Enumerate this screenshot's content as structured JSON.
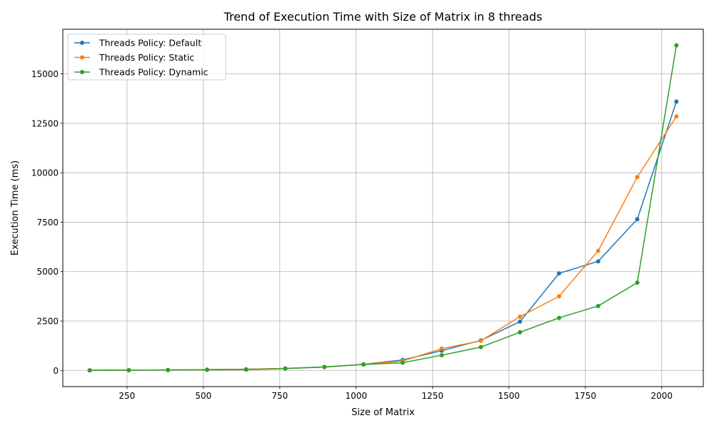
{
  "chart_data": {
    "type": "line",
    "title": "Trend of Execution Time with Size of Matrix in 8 threads",
    "xlabel": "Size of Matrix",
    "ylabel": "Execution Time (ms)",
    "x": [
      128,
      256,
      384,
      512,
      640,
      768,
      896,
      1024,
      1152,
      1280,
      1408,
      1536,
      1664,
      1792,
      1920,
      2048
    ],
    "xlim": [
      40,
      2136
    ],
    "ylim": [
      -820,
      17260
    ],
    "xticks": [
      250,
      500,
      750,
      1000,
      1250,
      1500,
      1750,
      2000
    ],
    "yticks": [
      0,
      2500,
      5000,
      7500,
      10000,
      12500,
      15000
    ],
    "grid": true,
    "legend_position": "upper-left",
    "series": [
      {
        "name": "Threads Policy: Default",
        "color": "#1f77b4",
        "values": [
          5,
          15,
          25,
          40,
          60,
          100,
          170,
          310,
          530,
          1000,
          1520,
          2470,
          4910,
          5520,
          7650,
          13600
        ]
      },
      {
        "name": "Threads Policy: Static",
        "color": "#ff7f0e",
        "values": [
          5,
          15,
          25,
          40,
          60,
          100,
          170,
          310,
          480,
          1100,
          1500,
          2720,
          3750,
          6050,
          9780,
          12850
        ]
      },
      {
        "name": "Threads Policy: Dynamic",
        "color": "#2ca02c",
        "values": [
          3,
          10,
          15,
          30,
          40,
          90,
          180,
          300,
          390,
          770,
          1180,
          1930,
          2660,
          3260,
          4440,
          16450
        ]
      }
    ]
  }
}
